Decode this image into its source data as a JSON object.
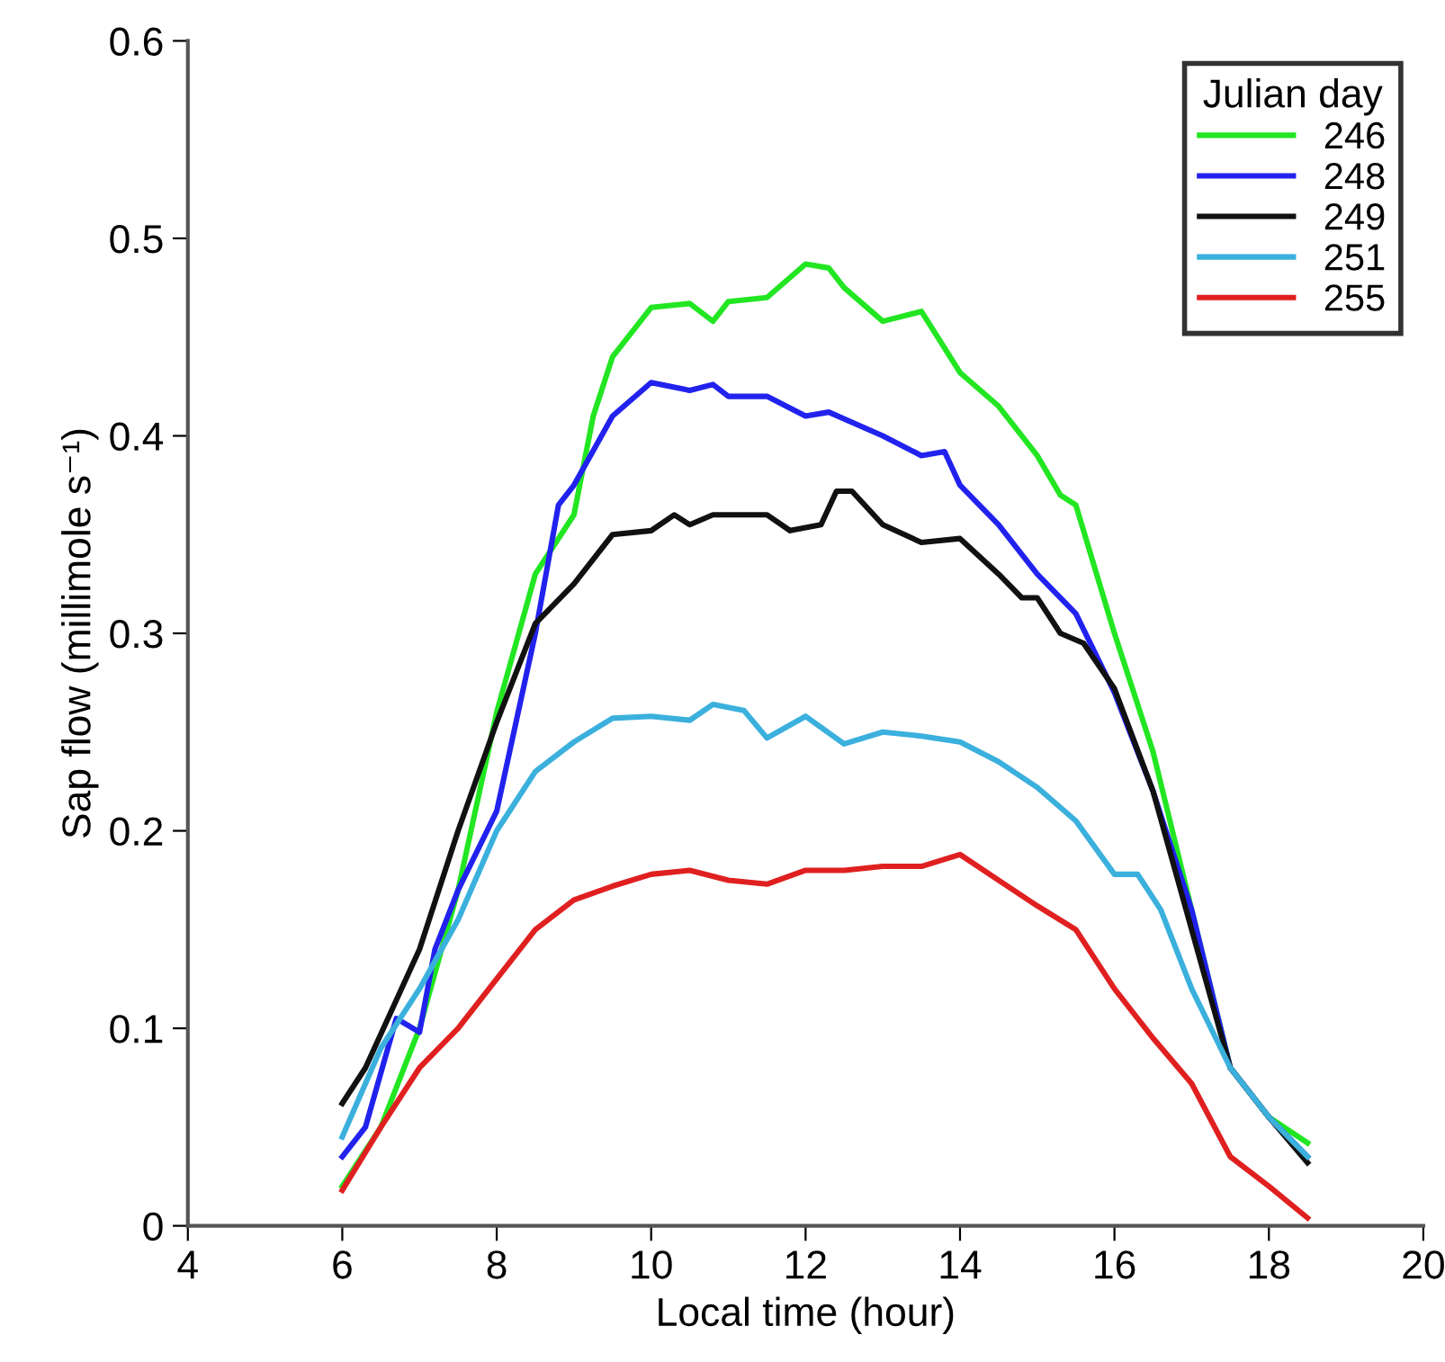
{
  "chart_data": {
    "type": "line",
    "xlabel": "Local time (hour)",
    "ylabel": "Sap flow (millimole s⁻¹)",
    "legend_title": "Julian day",
    "legend": "top right",
    "grid": false,
    "marker": "none",
    "line_style": "solid",
    "xlim": [
      4,
      20
    ],
    "xticks": [
      4,
      6,
      8,
      10,
      12,
      14,
      16,
      18,
      20
    ],
    "ylim": [
      0,
      0.6
    ],
    "yticks": [
      0,
      0.1,
      0.2,
      0.3,
      0.4,
      0.5,
      0.6
    ],
    "series": [
      {
        "name": "246",
        "color": "#22e622",
        "x": [
          6,
          6.5,
          7,
          7.5,
          8,
          8.5,
          9,
          9.25,
          9.5,
          10,
          10.5,
          10.8,
          11,
          11.5,
          12,
          12.3,
          12.5,
          13,
          13.5,
          14,
          14.5,
          15,
          15.3,
          15.5,
          16,
          16.5,
          17,
          17.5,
          18,
          18.5
        ],
        "values": [
          0.02,
          0.05,
          0.1,
          0.17,
          0.26,
          0.33,
          0.36,
          0.41,
          0.44,
          0.465,
          0.467,
          0.458,
          0.468,
          0.47,
          0.487,
          0.485,
          0.475,
          0.458,
          0.463,
          0.432,
          0.415,
          0.39,
          0.37,
          0.365,
          0.3,
          0.24,
          0.16,
          0.08,
          0.055,
          0.042
        ]
      },
      {
        "name": "248",
        "color": "#2222ee",
        "x": [
          6,
          6.3,
          6.7,
          7,
          7.2,
          7.5,
          8,
          8.5,
          8.8,
          9,
          9.5,
          10,
          10.5,
          10.8,
          11,
          11.5,
          12,
          12.3,
          13,
          13.5,
          13.8,
          14,
          14.5,
          15,
          15.5,
          16,
          16.5,
          17,
          17.5,
          18,
          18.5
        ],
        "values": [
          0.035,
          0.05,
          0.105,
          0.098,
          0.14,
          0.17,
          0.21,
          0.3,
          0.365,
          0.375,
          0.41,
          0.427,
          0.423,
          0.426,
          0.42,
          0.42,
          0.41,
          0.412,
          0.4,
          0.39,
          0.392,
          0.375,
          0.355,
          0.33,
          0.31,
          0.27,
          0.22,
          0.16,
          0.08,
          0.055,
          0.035
        ]
      },
      {
        "name": "249",
        "color": "#111111",
        "x": [
          6,
          6.3,
          7,
          7.5,
          8,
          8.5,
          9,
          9.5,
          10,
          10.3,
          10.5,
          10.8,
          11.5,
          11.8,
          12.2,
          12.4,
          12.6,
          13,
          13.5,
          14,
          14.5,
          14.8,
          15,
          15.3,
          15.6,
          16,
          16.5,
          17,
          17.5,
          18,
          18.5
        ],
        "values": [
          0.062,
          0.08,
          0.14,
          0.2,
          0.255,
          0.305,
          0.325,
          0.35,
          0.352,
          0.36,
          0.355,
          0.36,
          0.36,
          0.352,
          0.355,
          0.372,
          0.372,
          0.355,
          0.346,
          0.348,
          0.33,
          0.318,
          0.318,
          0.3,
          0.295,
          0.272,
          0.22,
          0.15,
          0.08,
          0.055,
          0.032
        ]
      },
      {
        "name": "251",
        "color": "#3bb0dd",
        "x": [
          6,
          6.5,
          7,
          7.5,
          8,
          8.5,
          9,
          9.5,
          10,
          10.5,
          10.8,
          11.2,
          11.5,
          12,
          12.5,
          13,
          13.5,
          14,
          14.5,
          15,
          15.5,
          16,
          16.3,
          16.6,
          17,
          17.5,
          18,
          18.5
        ],
        "values": [
          0.045,
          0.09,
          0.12,
          0.155,
          0.2,
          0.23,
          0.245,
          0.257,
          0.258,
          0.256,
          0.264,
          0.261,
          0.247,
          0.258,
          0.244,
          0.25,
          0.248,
          0.245,
          0.235,
          0.222,
          0.205,
          0.178,
          0.178,
          0.16,
          0.12,
          0.08,
          0.055,
          0.035
        ]
      },
      {
        "name": "255",
        "color": "#e02020",
        "x": [
          6,
          6.5,
          7,
          7.5,
          8,
          8.5,
          9,
          9.5,
          10,
          10.5,
          11,
          11.5,
          12,
          12.5,
          13,
          13.5,
          14,
          14.5,
          15,
          15.5,
          16,
          16.5,
          17,
          17.5,
          18,
          18.5
        ],
        "values": [
          0.018,
          0.05,
          0.08,
          0.1,
          0.125,
          0.15,
          0.165,
          0.172,
          0.178,
          0.18,
          0.175,
          0.173,
          0.18,
          0.18,
          0.182,
          0.182,
          0.188,
          0.175,
          0.162,
          0.15,
          0.12,
          0.095,
          0.072,
          0.035,
          0.02,
          0.004
        ]
      }
    ]
  }
}
